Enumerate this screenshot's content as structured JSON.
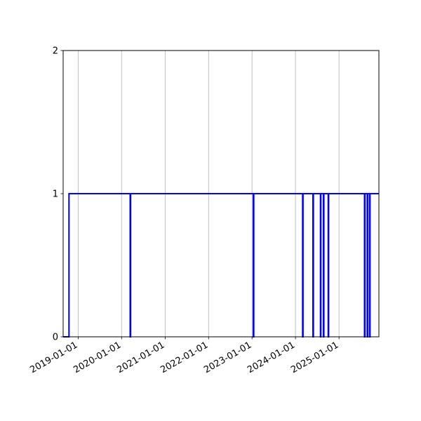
{
  "chart_data": {
    "type": "line",
    "step": true,
    "title": "",
    "xlabel": "",
    "ylabel": "",
    "x_type": "date",
    "xlim": [
      "2018-08-28",
      "2025-12-02"
    ],
    "ylim": [
      0,
      2
    ],
    "x_ticks": [
      "2019-01-01",
      "2020-01-01",
      "2021-01-01",
      "2022-01-01",
      "2023-01-01",
      "2024-01-01",
      "2025-01-01"
    ],
    "y_ticks": [
      "0",
      "1",
      "2"
    ],
    "grid": {
      "x": true,
      "y": false
    },
    "color": "#0000ff",
    "grid_color": "#b0b0b0",
    "series": [
      {
        "start": {
          "date": "2018-08-28",
          "value": 0
        },
        "rise_to_one": "2018-10-16",
        "drops_to_zero": [
          "2020-03-13",
          "2023-01-12",
          "2024-03-01",
          "2024-05-27",
          "2024-07-29",
          "2024-08-23",
          "2024-10-02",
          "2025-08-03",
          "2025-08-26",
          "2025-09-15"
        ],
        "end": {
          "date": "2025-12-02",
          "value": 1
        }
      }
    ]
  }
}
